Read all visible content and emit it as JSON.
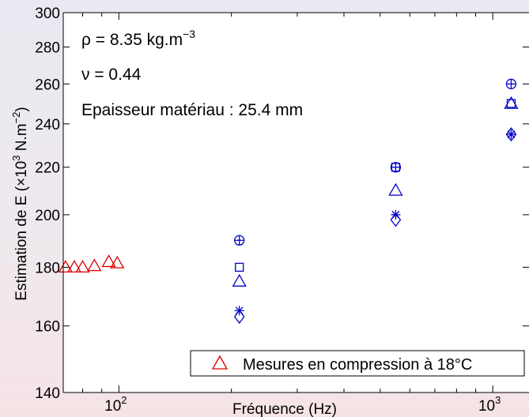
{
  "chart_data": {
    "type": "scatter",
    "x_scale": "log",
    "y_scale": "log",
    "xlim": [
      71,
      1250
    ],
    "ylim": [
      140,
      300
    ],
    "xlabel": "Fréquence (Hz)",
    "ylabel_prefix": "Estimation de E (×10",
    "ylabel_exp": "3",
    "ylabel_mid": " N.m",
    "ylabel_exp2": "−2",
    "ylabel_suffix": ")",
    "x_ticks": [
      {
        "value": 100,
        "base": "10",
        "exp": "2"
      },
      {
        "value": 1000,
        "base": "10",
        "exp": "3"
      }
    ],
    "y_ticks": [
      140,
      160,
      180,
      200,
      220,
      240,
      260,
      280,
      300
    ],
    "grid": false,
    "annotations": [
      {
        "prefix": "ρ = 8.35 kg.m",
        "sup": "−3"
      },
      {
        "prefix": "ν = 0.44",
        "sup": ""
      },
      {
        "prefix": "Epaisseur matériau : 25.4 mm",
        "sup": ""
      }
    ],
    "legend": {
      "position": "bottom-right",
      "label": "Mesures en compression à 18°C",
      "marker": "triangle",
      "color": "#dd0000"
    },
    "series": [
      {
        "name": "Mesures en compression à 18°C",
        "marker": "triangle",
        "color": "#dd0000",
        "points": [
          [
            72,
            180
          ],
          [
            76,
            180
          ],
          [
            80,
            180
          ],
          [
            86,
            180.5
          ],
          [
            94,
            182
          ],
          [
            99,
            181.5
          ]
        ]
      },
      {
        "marker": "circle-plus",
        "color": "#0000cc",
        "points": [
          [
            210,
            190
          ],
          [
            550,
            220
          ],
          [
            1120,
            260
          ]
        ]
      },
      {
        "marker": "square",
        "color": "#0000cc",
        "points": [
          [
            210,
            180
          ],
          [
            550,
            220
          ],
          [
            1120,
            250
          ]
        ]
      },
      {
        "marker": "triangle",
        "color": "#0000cc",
        "points": [
          [
            210,
            175
          ],
          [
            550,
            210
          ],
          [
            1120,
            250
          ]
        ]
      },
      {
        "marker": "asterisk",
        "color": "#0000cc",
        "points": [
          [
            210,
            165
          ],
          [
            550,
            200
          ],
          [
            1120,
            235
          ]
        ]
      },
      {
        "marker": "diamond",
        "color": "#0000cc",
        "points": [
          [
            210,
            163
          ],
          [
            550,
            198
          ],
          [
            1120,
            235
          ]
        ]
      }
    ]
  }
}
